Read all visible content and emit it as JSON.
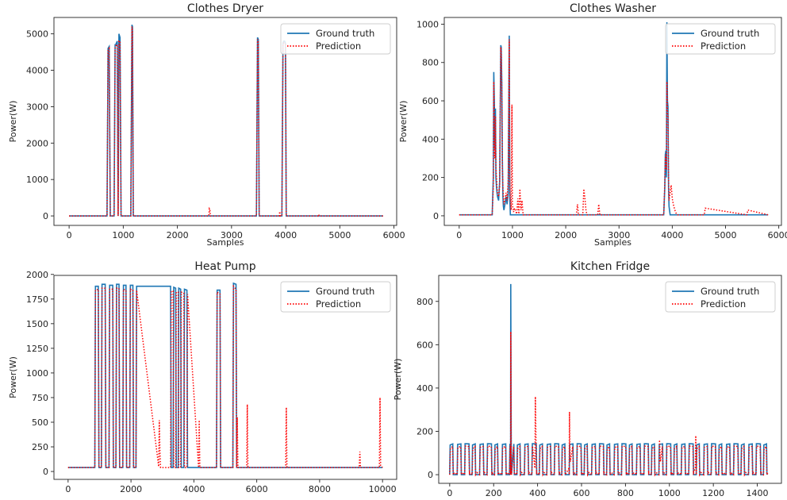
{
  "chart_data": [
    {
      "type": "line",
      "title": "Clothes Dryer",
      "xlabel": "Samples",
      "ylabel": "Power(W)",
      "xlim": [
        -280,
        6050
      ],
      "ylim": [
        -260,
        5450
      ],
      "xticks": [
        "0",
        "1000",
        "2000",
        "3000",
        "4000",
        "5000",
        "6000"
      ],
      "xtick_values": [
        0,
        1000,
        2000,
        3000,
        4000,
        5000,
        6000
      ],
      "yticks": [
        "0",
        "1000",
        "2000",
        "3000",
        "4000",
        "5000"
      ],
      "ytick_values": [
        0,
        1000,
        2000,
        3000,
        4000,
        5000
      ],
      "legend_position": "top-right",
      "series": [
        {
          "name": "Ground truth",
          "style": "solid",
          "color": "#1f77b4",
          "x": [
            0,
            700,
            720,
            740,
            760,
            780,
            800,
            830,
            850,
            860,
            875,
            890,
            905,
            920,
            940,
            960,
            980,
            1140,
            1160,
            1170,
            1185,
            1200,
            3460,
            3480,
            3495,
            3510,
            3930,
            3950,
            3965,
            3980,
            3995,
            4010,
            4025,
            5800
          ],
          "y": [
            0,
            0,
            4600,
            4650,
            0,
            0,
            0,
            0,
            4700,
            4700,
            4750,
            4800,
            0,
            5000,
            4900,
            0,
            0,
            0,
            5250,
            5200,
            0,
            0,
            0,
            4900,
            4850,
            0,
            0,
            4750,
            4800,
            4800,
            4750,
            0,
            0,
            0
          ]
        },
        {
          "name": "Prediction",
          "style": "dotted",
          "color": "#ff0000",
          "x": [
            0,
            700,
            720,
            740,
            760,
            780,
            800,
            830,
            850,
            860,
            875,
            890,
            905,
            920,
            940,
            960,
            980,
            1140,
            1160,
            1170,
            1185,
            1200,
            2580,
            2590,
            2600,
            2610,
            3460,
            3480,
            3495,
            3510,
            3880,
            3890,
            3900,
            3930,
            3950,
            3965,
            3980,
            3995,
            4010,
            4025,
            4600,
            4610,
            4620,
            5800
          ],
          "y": [
            0,
            0,
            4550,
            4600,
            0,
            0,
            0,
            0,
            4600,
            4650,
            4700,
            4700,
            0,
            4800,
            4800,
            0,
            0,
            0,
            5200,
            5100,
            0,
            0,
            0,
            200,
            180,
            0,
            0,
            4850,
            4800,
            0,
            0,
            120,
            0,
            0,
            4700,
            4750,
            4750,
            4700,
            0,
            0,
            0,
            40,
            0,
            0
          ]
        }
      ]
    },
    {
      "type": "line",
      "title": "Clothes Washer",
      "xlabel": "Samples",
      "ylabel": "Power(W)",
      "xlim": [
        -280,
        6050
      ],
      "ylim": [
        -50,
        1035
      ],
      "xticks": [
        "0",
        "1000",
        "2000",
        "3000",
        "4000",
        "5000",
        "6000"
      ],
      "xtick_values": [
        0,
        1000,
        2000,
        3000,
        4000,
        5000,
        6000
      ],
      "yticks": [
        "0",
        "200",
        "400",
        "600",
        "800",
        "1000"
      ],
      "ytick_values": [
        0,
        200,
        400,
        600,
        800,
        1000
      ],
      "legend_position": "top-right",
      "series": [
        {
          "name": "Ground truth",
          "style": "solid",
          "color": "#1f77b4",
          "x": [
            0,
            620,
            640,
            650,
            660,
            670,
            680,
            690,
            700,
            710,
            720,
            740,
            760,
            780,
            790,
            800,
            810,
            820,
            830,
            840,
            860,
            880,
            900,
            920,
            940,
            950,
            960,
            3840,
            3860,
            3870,
            3880,
            3890,
            3900,
            3910,
            3920,
            3930,
            3940,
            3960,
            5800
          ],
          "y": [
            5,
            5,
            200,
            750,
            600,
            350,
            560,
            200,
            150,
            120,
            100,
            80,
            180,
            890,
            880,
            700,
            300,
            100,
            50,
            30,
            60,
            100,
            60,
            120,
            940,
            100,
            5,
            5,
            150,
            320,
            340,
            200,
            1010,
            600,
            570,
            150,
            50,
            5,
            5
          ]
        },
        {
          "name": "Prediction",
          "style": "dotted",
          "color": "#ff0000",
          "x": [
            0,
            620,
            640,
            650,
            660,
            670,
            680,
            690,
            700,
            710,
            720,
            740,
            760,
            780,
            790,
            800,
            810,
            820,
            830,
            840,
            860,
            880,
            900,
            920,
            940,
            950,
            960,
            975,
            990,
            1000,
            1020,
            1040,
            1080,
            1100,
            1120,
            1140,
            1160,
            1180,
            1200,
            2200,
            2220,
            2240,
            2320,
            2340,
            2360,
            2380,
            2400,
            2600,
            2620,
            2640,
            3840,
            3860,
            3870,
            3880,
            3890,
            3900,
            3910,
            3920,
            3930,
            3940,
            3960,
            3980,
            4000,
            4020,
            4040,
            4060,
            4080,
            4100,
            4600,
            4620,
            5400,
            5420,
            5800
          ],
          "y": [
            5,
            5,
            150,
            700,
            500,
            300,
            520,
            250,
            200,
            150,
            120,
            100,
            150,
            880,
            850,
            650,
            250,
            150,
            100,
            60,
            80,
            120,
            80,
            180,
            920,
            160,
            90,
            30,
            580,
            60,
            20,
            40,
            10,
            90,
            10,
            140,
            30,
            80,
            5,
            5,
            60,
            5,
            5,
            140,
            90,
            30,
            5,
            5,
            60,
            5,
            5,
            180,
            300,
            320,
            240,
            700,
            550,
            520,
            200,
            80,
            120,
            160,
            90,
            60,
            40,
            20,
            10,
            5,
            5,
            40,
            5,
            30,
            5
          ]
        }
      ]
    },
    {
      "type": "line",
      "title": "Heat Pump",
      "xlabel": "",
      "ylabel": "Power(W)",
      "xlim": [
        -450,
        10450
      ],
      "ylim": [
        -80,
        1990
      ],
      "xticks": [
        "0",
        "2000",
        "4000",
        "6000",
        "8000",
        "10000"
      ],
      "xtick_values": [
        0,
        2000,
        4000,
        6000,
        8000,
        10000
      ],
      "yticks": [
        "0",
        "250",
        "500",
        "750",
        "1000",
        "1250",
        "1500",
        "1750",
        "2000"
      ],
      "ytick_values": [
        0,
        250,
        500,
        750,
        1000,
        1250,
        1500,
        1750,
        2000
      ],
      "legend_position": "top-right",
      "series": [
        {
          "name": "Ground truth",
          "style": "solid",
          "color": "#1f77b4",
          "x": [
            0,
            850,
            870,
            960,
            980,
            1060,
            1080,
            1180,
            1200,
            1300,
            1320,
            1420,
            1440,
            1520,
            1540,
            1620,
            1640,
            1740,
            1760,
            1840,
            1860,
            1960,
            1980,
            2060,
            2080,
            2160,
            2180,
            3260,
            3280,
            3340,
            3360,
            3420,
            3440,
            3500,
            3520,
            3580,
            3600,
            3680,
            3700,
            3780,
            3800,
            4720,
            4740,
            4830,
            4850,
            5240,
            5260,
            5340,
            5360,
            10000
          ],
          "y": [
            40,
            40,
            1880,
            1880,
            40,
            40,
            1900,
            1900,
            40,
            40,
            1890,
            1890,
            40,
            40,
            1900,
            1900,
            40,
            40,
            1890,
            1890,
            40,
            40,
            1890,
            1890,
            40,
            40,
            1880,
            1880,
            40,
            40,
            1870,
            1860,
            40,
            40,
            1860,
            1850,
            40,
            40,
            1850,
            1840,
            40,
            40,
            1840,
            1840,
            40,
            40,
            1910,
            1900,
            40,
            40
          ]
        },
        {
          "name": "Prediction",
          "style": "dotted",
          "color": "#ff0000",
          "x": [
            0,
            850,
            870,
            960,
            980,
            1060,
            1080,
            1180,
            1200,
            1300,
            1320,
            1420,
            1440,
            1520,
            1540,
            1620,
            1640,
            1740,
            1760,
            1840,
            1860,
            1960,
            1980,
            2060,
            2080,
            2160,
            2180,
            2880,
            2900,
            2920,
            2940,
            3260,
            3280,
            3340,
            3360,
            3420,
            3440,
            3500,
            3520,
            3580,
            3600,
            3680,
            3700,
            3780,
            3800,
            4150,
            4170,
            4190,
            4720,
            4740,
            4830,
            4850,
            5240,
            5260,
            5340,
            5360,
            5380,
            5400,
            5680,
            5700,
            5720,
            6920,
            6940,
            6960,
            9260,
            9280,
            9300,
            9900,
            9920,
            9940,
            10000
          ],
          "y": [
            40,
            40,
            1840,
            1850,
            40,
            40,
            1860,
            1860,
            40,
            40,
            1850,
            1850,
            40,
            40,
            1860,
            1860,
            40,
            40,
            1850,
            1840,
            40,
            40,
            1850,
            1840,
            40,
            40,
            1840,
            50,
            520,
            200,
            40,
            40,
            1830,
            1830,
            40,
            40,
            1820,
            1820,
            40,
            40,
            1820,
            1810,
            40,
            40,
            1800,
            40,
            520,
            40,
            40,
            1820,
            1800,
            40,
            40,
            1880,
            1850,
            40,
            550,
            40,
            40,
            680,
            40,
            40,
            650,
            40,
            40,
            200,
            40,
            40,
            750,
            60,
            40
          ]
        }
      ]
    },
    {
      "type": "line",
      "title": "Kitchen Fridge",
      "xlabel": "",
      "ylabel": "Power(W)",
      "xlim": [
        -50,
        1510
      ],
      "ylim": [
        -40,
        920
      ],
      "xticks": [
        "0",
        "200",
        "400",
        "600",
        "800",
        "1000",
        "1200",
        "1400"
      ],
      "xtick_values": [
        0,
        200,
        400,
        600,
        800,
        1000,
        1200,
        1400
      ],
      "yticks": [
        "0",
        "200",
        "400",
        "600",
        "800"
      ],
      "ytick_values": [
        0,
        200,
        400,
        600,
        800
      ],
      "legend_position": "top-right",
      "cycle_period": 34,
      "cycle_on_level": 140,
      "cycle_off_level": 0,
      "spike": {
        "x": 278,
        "ground_truth": 880,
        "prediction": 660
      },
      "prediction_spikes": [
        {
          "x": 390,
          "y": 360
        },
        {
          "x": 545,
          "y": 290
        },
        {
          "x": 955,
          "y": 160
        },
        {
          "x": 1120,
          "y": 180
        }
      ],
      "series": [
        {
          "name": "Ground truth",
          "style": "solid",
          "color": "#1f77b4"
        },
        {
          "name": "Prediction",
          "style": "dotted",
          "color": "#ff0000"
        }
      ]
    }
  ]
}
